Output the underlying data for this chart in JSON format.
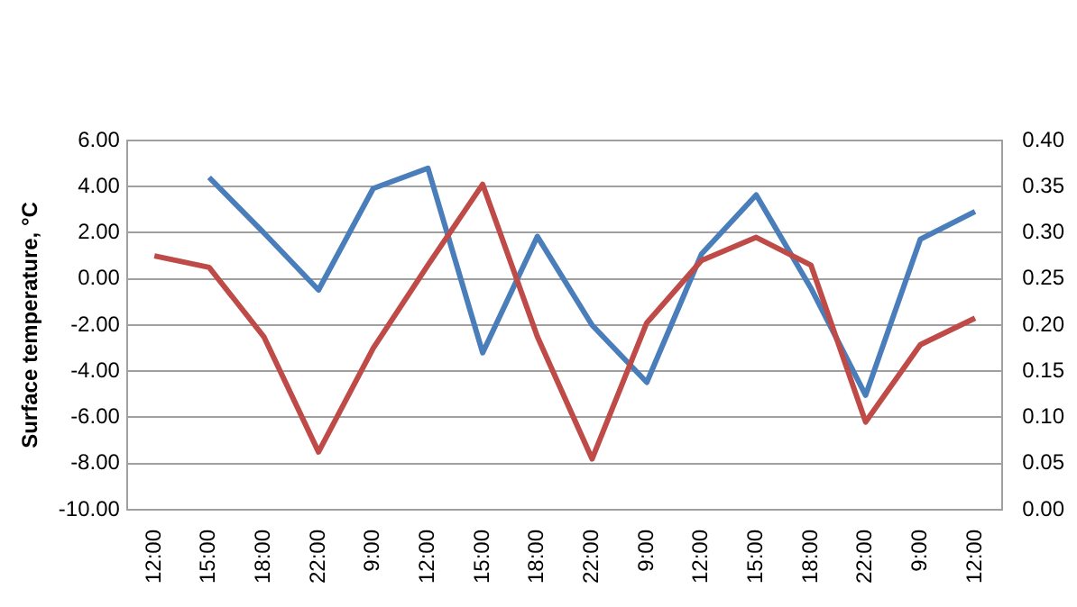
{
  "chart_data": {
    "type": "line",
    "ylabel": "Surface temperature, °C",
    "categories": [
      "12:00",
      "15:00",
      "18:00",
      "22:00",
      "9:00",
      "12:00",
      "15:00",
      "18:00",
      "22:00",
      "9:00",
      "12:00",
      "15:00",
      "18:00",
      "22:00",
      "9:00",
      "12:00"
    ],
    "series": [
      {
        "color": "#be4b48",
        "values": [
          1.0,
          0.5,
          -2.5,
          -7.5,
          -3.0,
          0.6,
          4.1,
          -2.5,
          -7.8,
          -1.9,
          0.8,
          1.8,
          0.6,
          -6.2,
          -2.85,
          -1.7
        ]
      },
      {
        "color": "#4a7ebb",
        "axis": "y2",
        "values": [
          null,
          0.36,
          0.3,
          0.238,
          0.348,
          0.37,
          0.17,
          0.296,
          0.2,
          0.138,
          0.277,
          0.341,
          0.24,
          0.124,
          0.293,
          0.323
        ]
      }
    ],
    "ylim": [
      -10,
      6
    ],
    "yticks": [
      {
        "value": -10,
        "label": "-10.00"
      },
      {
        "value": -8,
        "label": "-8.00"
      },
      {
        "value": -6,
        "label": "-6.00"
      },
      {
        "value": -4,
        "label": "-4.00"
      },
      {
        "value": -2,
        "label": "-2.00"
      },
      {
        "value": 0,
        "label": "0.00"
      },
      {
        "value": 2,
        "label": "2.00"
      },
      {
        "value": 4,
        "label": "4.00"
      },
      {
        "value": 6,
        "label": "6.00"
      }
    ],
    "y2lim": [
      0,
      0.4
    ],
    "y2ticks": [
      {
        "value": 0,
        "label": "0.00"
      },
      {
        "value": 0.05,
        "label": "0.05"
      },
      {
        "value": 0.1,
        "label": "0.10"
      },
      {
        "value": 0.15,
        "label": "0.15"
      },
      {
        "value": 0.2,
        "label": "0.20"
      },
      {
        "value": 0.25,
        "label": "0.25"
      },
      {
        "value": 0.3,
        "label": "0.30"
      },
      {
        "value": 0.35,
        "label": "0.35"
      },
      {
        "value": 0.4,
        "label": "0.40"
      }
    ],
    "grid": "y",
    "marker": "none",
    "line_style": "solid"
  }
}
